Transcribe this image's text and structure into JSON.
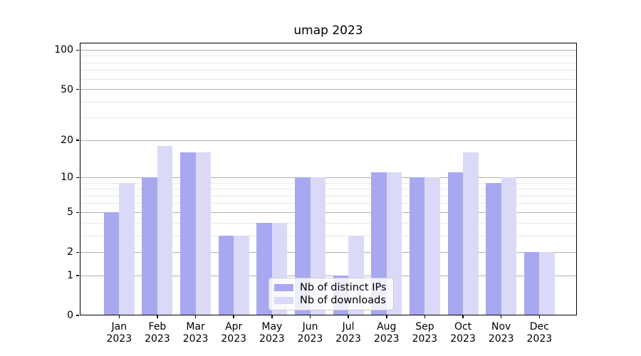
{
  "figure": {
    "title": "umap 2023",
    "background": "#ffffff"
  },
  "chart_data": {
    "type": "bar",
    "title": "umap 2023",
    "categories": [
      "Jan 2023",
      "Feb 2023",
      "Mar 2023",
      "Apr 2023",
      "May 2023",
      "Jun 2023",
      "Jul 2023",
      "Aug 2023",
      "Sep 2023",
      "Oct 2023",
      "Nov 2023",
      "Dec 2023"
    ],
    "months": [
      "Jan",
      "Feb",
      "Mar",
      "Apr",
      "May",
      "Jun",
      "Jul",
      "Aug",
      "Sep",
      "Oct",
      "Nov",
      "Dec"
    ],
    "year": "2023",
    "series": [
      {
        "name": "Nb of distinct IPs",
        "color": "#a8a8f0",
        "values": [
          5,
          10,
          16,
          3,
          4,
          10,
          1,
          11,
          10,
          11,
          9,
          2
        ]
      },
      {
        "name": "Nb of downloads",
        "color": "#dadaf8",
        "values": [
          9,
          18,
          16,
          3,
          4,
          10,
          3,
          11,
          10,
          16,
          10,
          2
        ]
      }
    ],
    "xlabel": "",
    "ylabel": "",
    "yscale": "log1p",
    "ylim": [
      0,
      114
    ],
    "yticks": [
      0,
      1,
      2,
      5,
      10,
      20,
      50,
      100
    ],
    "minor_yticks": [
      3,
      4,
      6,
      7,
      8,
      9,
      30,
      40,
      60,
      70,
      80,
      90
    ],
    "grid": true,
    "grid_major_color": "#b0b0b0",
    "grid_minor_color": "#e8e8e8",
    "legend": {
      "labels": [
        "Nb of distinct IPs",
        "Nb of downloads"
      ],
      "position": "lower center (inside plot)"
    }
  }
}
